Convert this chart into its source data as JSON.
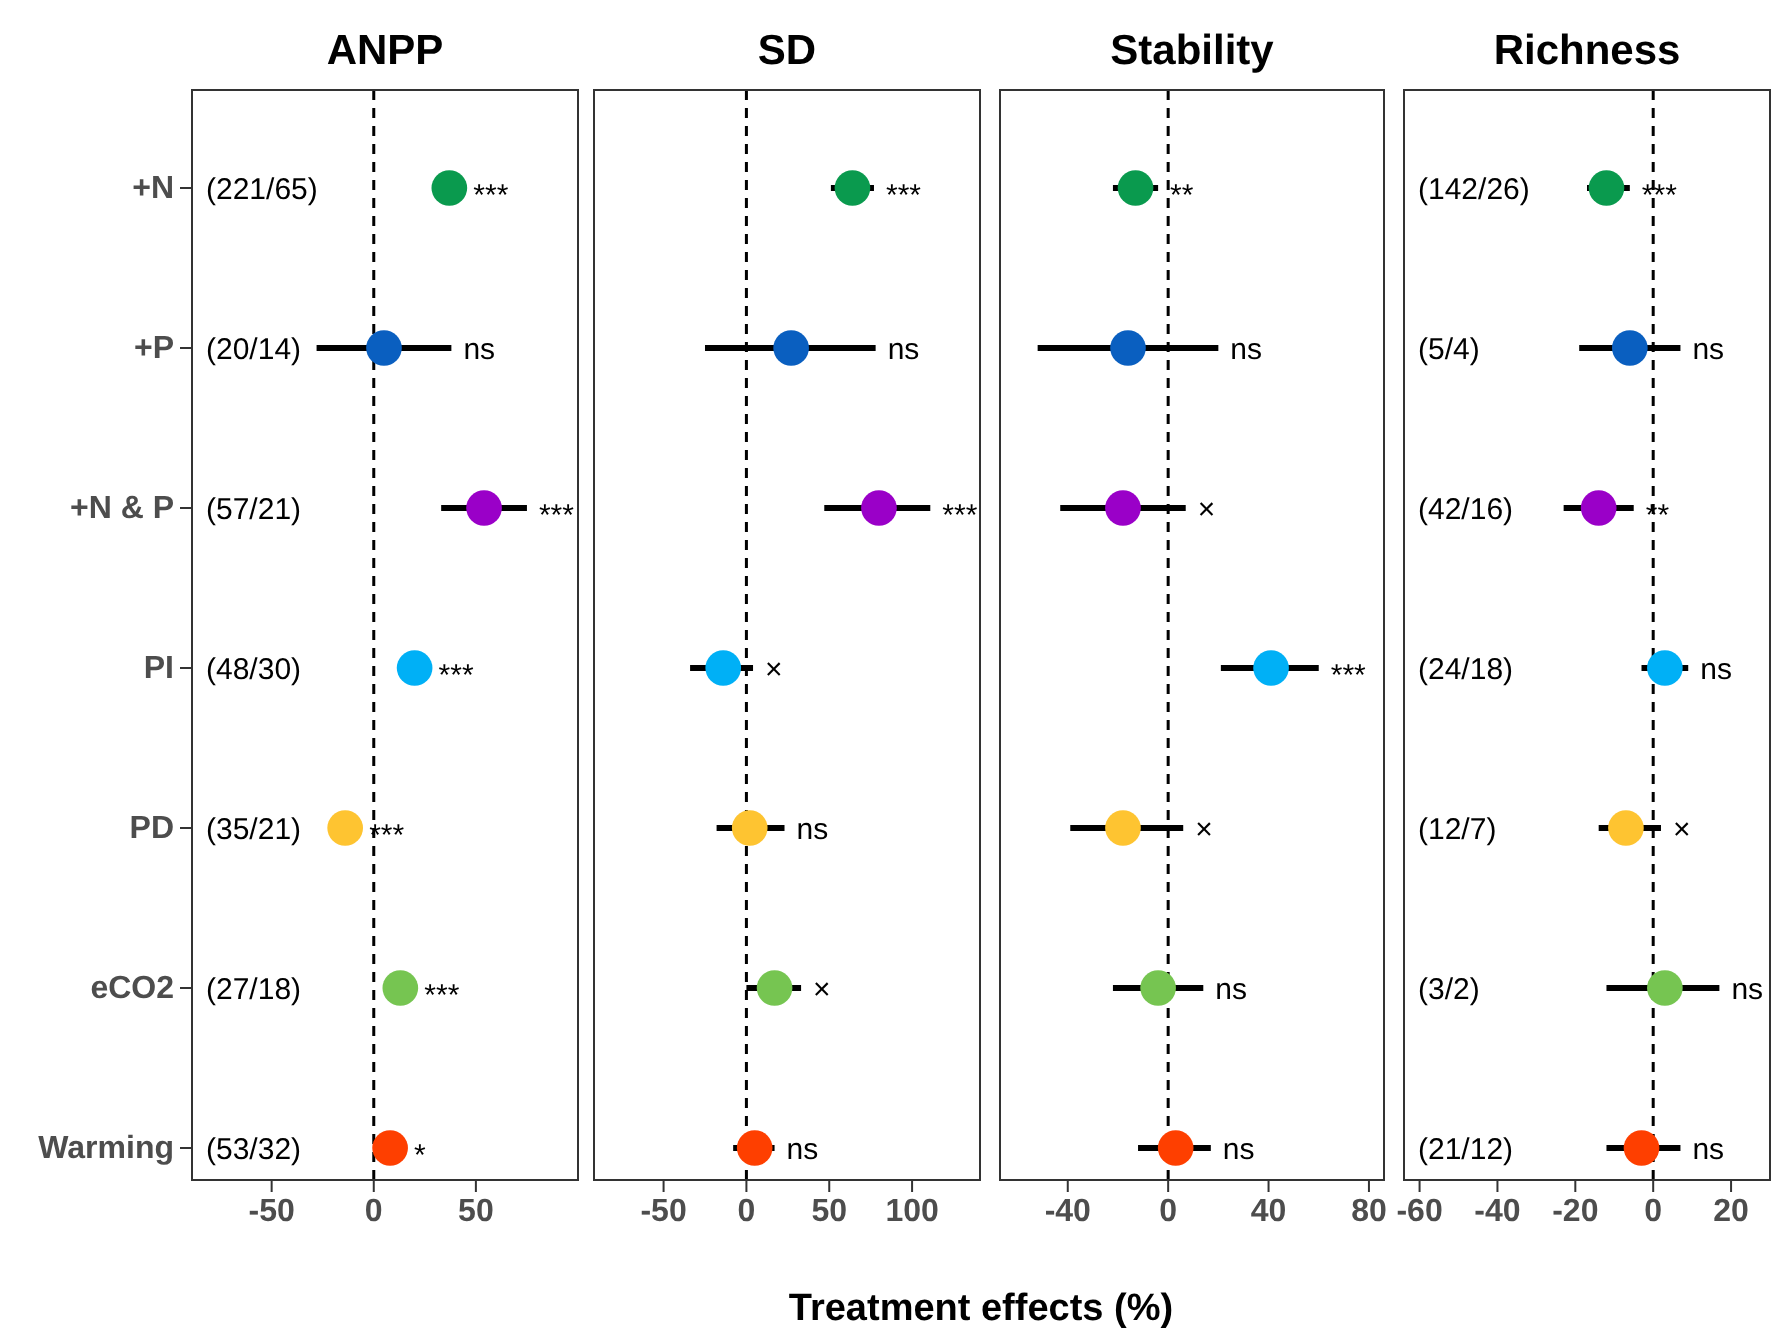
{
  "chart_data": [
    {
      "type": "scatter",
      "title": "ANPP",
      "orientation": "horizontal",
      "categories": [
        "+N",
        "+P",
        "+N & P",
        "PI",
        "PD",
        "eCO2",
        "Warming"
      ],
      "xlim": [
        -89,
        100
      ],
      "xticks": [
        -50,
        0,
        50
      ],
      "grid": false,
      "marker": "circle",
      "series": [
        {
          "colors": [
            "#0a9a4e",
            "#0a5fc0",
            "#9a00c8",
            "#00b0f6",
            "#fec431",
            "#76c551",
            "#fe3f00"
          ],
          "values": [
            37,
            5,
            54,
            20,
            -14,
            13,
            8
          ],
          "errors": [
            null,
            [
              -28,
              38
            ],
            [
              33,
              75
            ],
            null,
            null,
            null,
            null
          ],
          "value_labels": [
            "***",
            "ns",
            "***",
            "***",
            "***",
            "***",
            "*"
          ]
        }
      ],
      "annotations": [
        "(221/65)",
        "(20/14)",
        "(57/21)",
        "(48/30)",
        "(35/21)",
        "(27/18)",
        "(53/32)"
      ],
      "ref_lines": [
        {
          "axis": "x",
          "value": 0,
          "line_style": "dashed"
        }
      ]
    },
    {
      "type": "scatter",
      "title": "SD",
      "orientation": "horizontal",
      "xlim": [
        -92,
        141
      ],
      "xticks": [
        -50,
        0,
        50,
        100
      ],
      "grid": false,
      "marker": "circle",
      "tick_labels": "x",
      "xlabel": "Treatment effects (%)",
      "series": [
        {
          "colors": [
            "#0a9a4e",
            "#0a5fc0",
            "#9a00c8",
            "#00b0f6",
            "#fec431",
            "#76c551",
            "#fe3f00"
          ],
          "values": [
            64,
            27,
            80,
            -14,
            2,
            17,
            5
          ],
          "errors": [
            [
              51,
              77
            ],
            [
              -25,
              78
            ],
            [
              47,
              111
            ],
            [
              -34,
              4
            ],
            [
              -18,
              23
            ],
            [
              0,
              33
            ],
            [
              -8,
              17
            ]
          ],
          "value_labels": [
            "***",
            "ns",
            "***",
            "×",
            "ns",
            "×",
            "ns"
          ]
        }
      ],
      "ref_lines": [
        {
          "axis": "x",
          "value": 0,
          "line_style": "dashed"
        }
      ]
    },
    {
      "type": "scatter",
      "title": "Stability",
      "orientation": "horizontal",
      "xlim": [
        -67,
        86
      ],
      "xticks": [
        -40,
        0,
        40,
        80
      ],
      "grid": false,
      "marker": "circle",
      "tick_labels": "x",
      "series": [
        {
          "colors": [
            "#0a9a4e",
            "#0a5fc0",
            "#9a00c8",
            "#00b0f6",
            "#fec431",
            "#76c551",
            "#fe3f00"
          ],
          "values": [
            -13,
            -16,
            -18,
            41,
            -18,
            -4,
            3
          ],
          "errors": [
            [
              -22,
              -4
            ],
            [
              -52,
              20
            ],
            [
              -43,
              7
            ],
            [
              21,
              60
            ],
            [
              -39,
              6
            ],
            [
              -22,
              14
            ],
            [
              -12,
              17
            ]
          ],
          "value_labels": [
            "**",
            "ns",
            "×",
            "***",
            "×",
            "ns",
            "ns"
          ]
        }
      ],
      "ref_lines": [
        {
          "axis": "x",
          "value": 0,
          "line_style": "dashed"
        }
      ]
    },
    {
      "type": "scatter",
      "title": "Richness",
      "orientation": "horizontal",
      "xlim": [
        -64,
        30
      ],
      "xticks": [
        -60,
        -40,
        -20,
        0,
        20
      ],
      "grid": false,
      "marker": "circle",
      "tick_labels": "x",
      "series": [
        {
          "colors": [
            "#0a9a4e",
            "#0a5fc0",
            "#9a00c8",
            "#00b0f6",
            "#fec431",
            "#76c551",
            "#fe3f00"
          ],
          "values": [
            -12,
            -6,
            -14,
            3,
            -7,
            3,
            -3
          ],
          "errors": [
            [
              -17,
              -6
            ],
            [
              -19,
              7
            ],
            [
              -23,
              -5
            ],
            [
              -3,
              9
            ],
            [
              -14,
              2
            ],
            [
              -12,
              17
            ],
            [
              -12,
              7
            ]
          ],
          "value_labels": [
            "***",
            "ns",
            "**",
            "ns",
            "×",
            "ns",
            "ns"
          ]
        }
      ],
      "annotations": [
        "(142/26)",
        "(5/4)",
        "(42/16)",
        "(24/18)",
        "(12/7)",
        "(3/2)",
        "(21/12)"
      ],
      "ref_lines": [
        {
          "axis": "x",
          "value": 0,
          "line_style": "dashed"
        }
      ]
    }
  ]
}
